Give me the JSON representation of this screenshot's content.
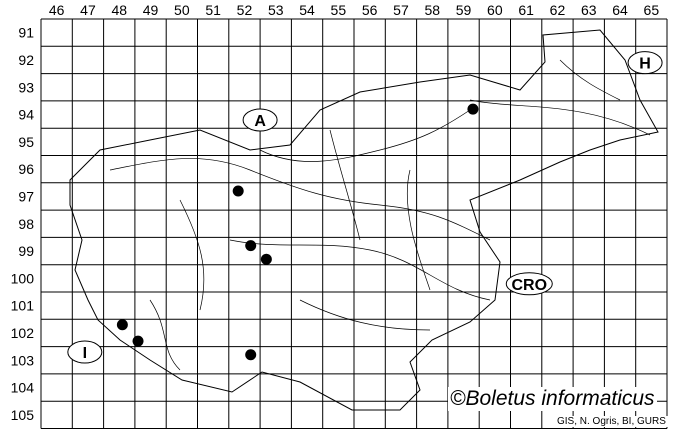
{
  "map": {
    "x_ticks": [
      "46",
      "47",
      "48",
      "49",
      "50",
      "51",
      "52",
      "53",
      "54",
      "55",
      "56",
      "57",
      "58",
      "59",
      "60",
      "61",
      "62",
      "63",
      "64",
      "65"
    ],
    "y_ticks": [
      "91",
      "92",
      "93",
      "94",
      "95",
      "96",
      "97",
      "98",
      "99",
      "100",
      "101",
      "102",
      "103",
      "104",
      "105"
    ],
    "records": [
      {
        "x": 59.8,
        "y": 94.3
      },
      {
        "x": 52.3,
        "y": 97.3
      },
      {
        "x": 52.7,
        "y": 99.3
      },
      {
        "x": 53.2,
        "y": 99.8
      },
      {
        "x": 48.6,
        "y": 102.2
      },
      {
        "x": 49.1,
        "y": 102.8
      },
      {
        "x": 52.7,
        "y": 103.3
      }
    ],
    "country_labels": [
      {
        "text": "A",
        "x": 53.0,
        "y": 94.7
      },
      {
        "text": "H",
        "x": 65.3,
        "y": 92.6
      },
      {
        "text": "CRO",
        "x": 61.6,
        "y": 100.7
      },
      {
        "text": "I",
        "x": 47.4,
        "y": 103.2
      }
    ],
    "line_color": "#000000",
    "dot_color": "#000000"
  },
  "credit": "©Boletus informaticus",
  "source": "GIS, N. Ogris, BI, GURS"
}
